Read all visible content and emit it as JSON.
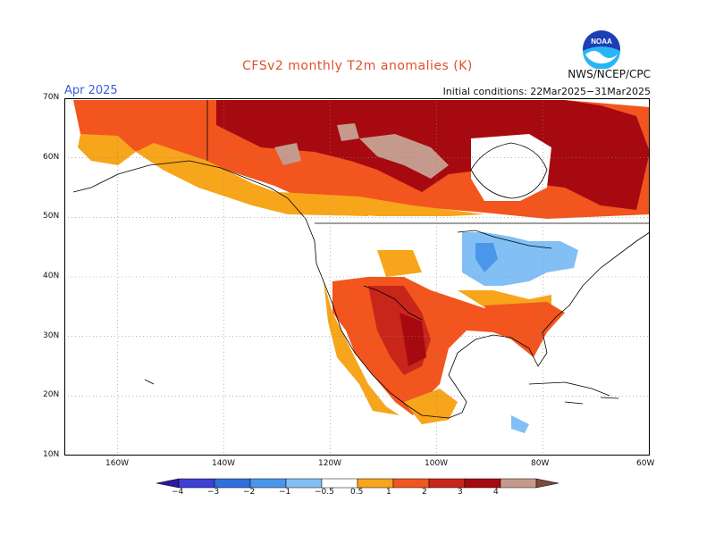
{
  "title": "CFSv2 monthly T2m anomalies (K)",
  "valid_month": "Apr 2025",
  "initial_conditions": "Initial conditions: 22Mar2025−31Mar2025",
  "agency": "NWS/NCEP/CPC",
  "logo_label": "NOAA",
  "map": {
    "lat_labels": [
      "70N",
      "60N",
      "50N",
      "40N",
      "30N",
      "20N",
      "10N"
    ],
    "lon_labels": [
      "160W",
      "140W",
      "120W",
      "100W",
      "80W",
      "60W"
    ]
  },
  "colorbar": {
    "levels": [
      "−4",
      "−3",
      "−2",
      "−1",
      "−0.5",
      "0.5",
      "1",
      "2",
      "3",
      "4"
    ],
    "colors": [
      "#2a1aa0",
      "#3d3fd6",
      "#2f6fe0",
      "#4a96ea",
      "#82bff5",
      "#ffffff",
      "#f7a51b",
      "#f2551e",
      "#c8261a",
      "#a60a10",
      "#c59a8c",
      "#7a4a3c"
    ]
  },
  "regions": [
    {
      "name": "Canada/Alaska",
      "anomaly": "warm 1 to 4 K"
    },
    {
      "name": "Southwest US / Mexico",
      "anomaly": "warm 1 to 3 K"
    },
    {
      "name": "Great Lakes",
      "anomaly": "cool -0.5 to -1 K"
    }
  ]
}
